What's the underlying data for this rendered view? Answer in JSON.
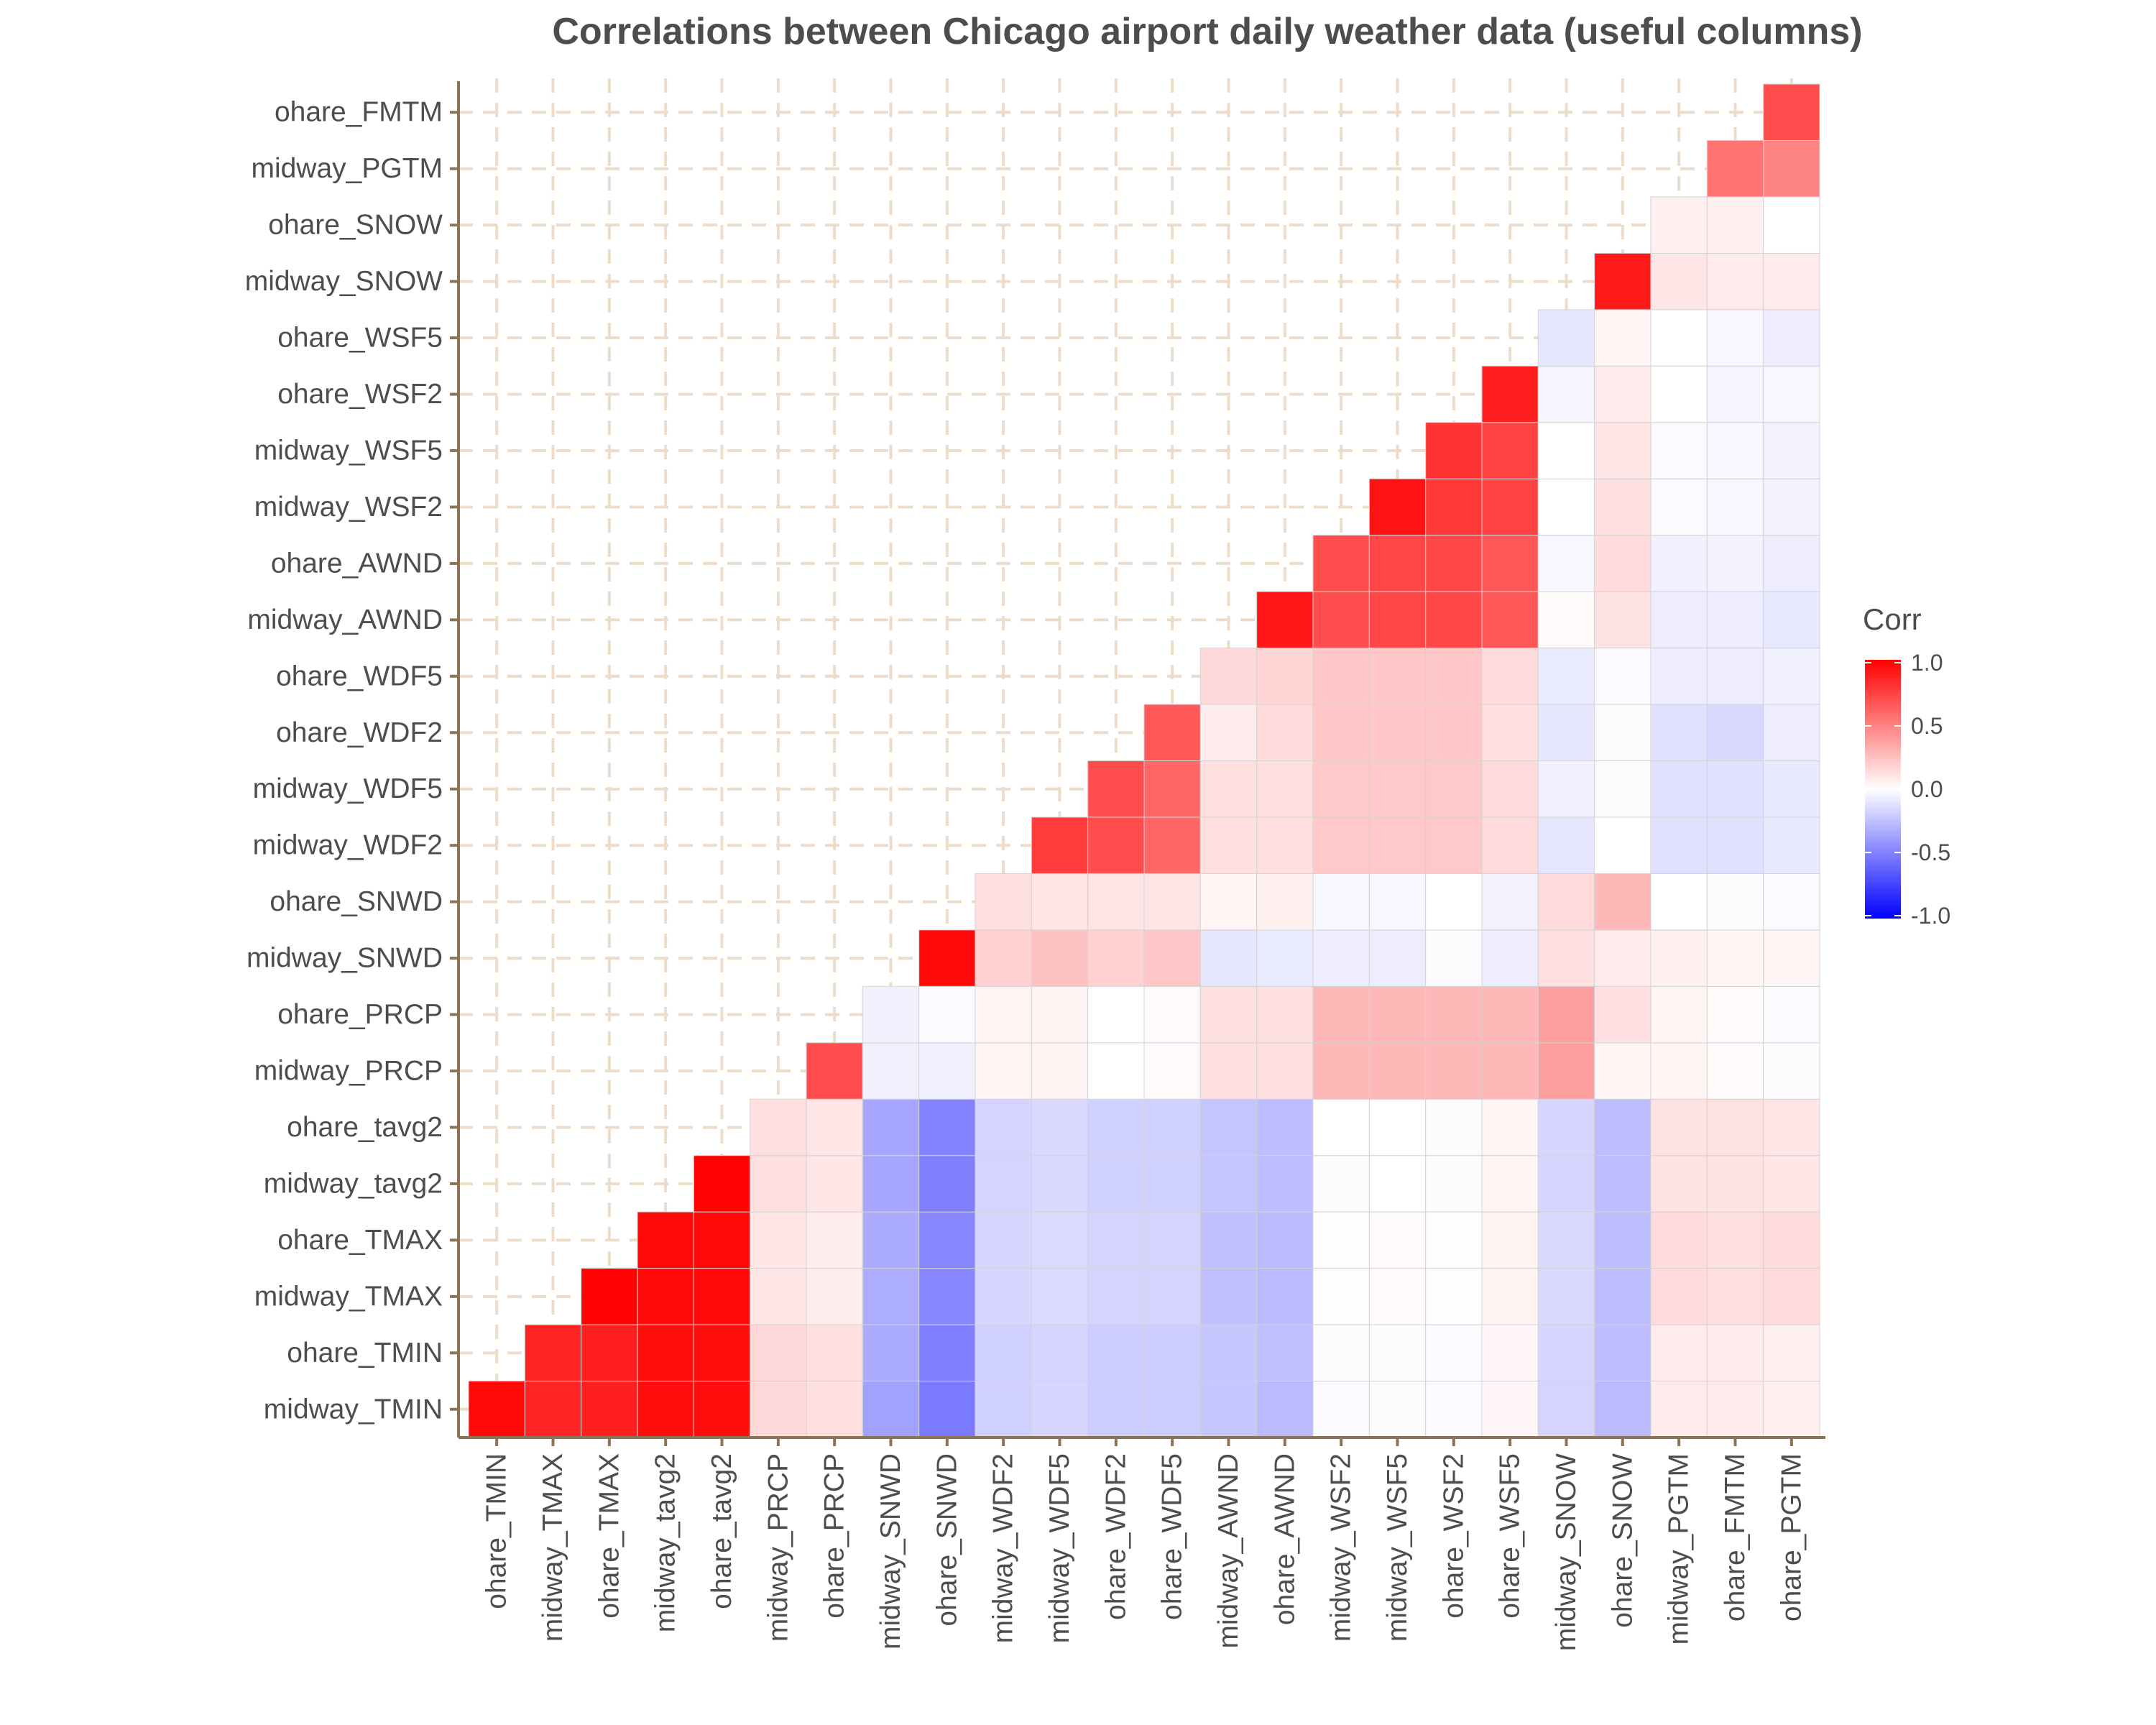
{
  "chart_data": {
    "type": "heatmap",
    "title": "Correlations between Chicago airport daily weather data (useful columns)",
    "x_labels": [
      "ohare_TMIN",
      "midway_TMAX",
      "ohare_TMAX",
      "midway_tavg2",
      "ohare_tavg2",
      "midway_PRCP",
      "ohare_PRCP",
      "midway_SNWD",
      "ohare_SNWD",
      "midway_WDF2",
      "midway_WDF5",
      "ohare_WDF2",
      "ohare_WDF5",
      "midway_AWND",
      "ohare_AWND",
      "midway_WSF2",
      "midway_WSF5",
      "ohare_WSF2",
      "ohare_WSF5",
      "midway_SNOW",
      "ohare_SNOW",
      "midway_PGTM",
      "ohare_FMTM",
      "ohare_PGTM"
    ],
    "y_labels": [
      "midway_TMIN",
      "ohare_TMIN",
      "midway_TMAX",
      "ohare_TMAX",
      "midway_tavg2",
      "ohare_tavg2",
      "midway_PRCP",
      "ohare_PRCP",
      "midway_SNWD",
      "ohare_SNWD",
      "midway_WDF2",
      "midway_WDF5",
      "ohare_WDF2",
      "ohare_WDF5",
      "midway_AWND",
      "ohare_AWND",
      "midway_WSF2",
      "midway_WSF5",
      "ohare_WSF2",
      "ohare_WSF5",
      "midway_SNOW",
      "ohare_SNOW",
      "midway_PGTM",
      "ohare_FMTM"
    ],
    "matrix": [
      [
        0.97,
        0.86,
        0.88,
        0.95,
        0.95,
        0.15,
        0.12,
        -0.37,
        -0.52,
        -0.18,
        -0.16,
        -0.2,
        -0.2,
        -0.22,
        -0.27,
        -0.02,
        -0.01,
        -0.02,
        0.03,
        -0.17,
        -0.27,
        0.08,
        0.08,
        0.06
      ],
      [
        null,
        0.86,
        0.88,
        0.95,
        0.95,
        0.15,
        0.12,
        -0.33,
        -0.5,
        -0.18,
        -0.16,
        -0.2,
        -0.2,
        -0.22,
        -0.25,
        -0.01,
        -0.01,
        -0.02,
        0.03,
        -0.16,
        -0.26,
        0.08,
        0.08,
        0.06
      ],
      [
        null,
        null,
        0.99,
        0.97,
        0.97,
        0.1,
        0.07,
        -0.32,
        -0.47,
        -0.16,
        -0.14,
        -0.17,
        -0.17,
        -0.25,
        -0.27,
        0.01,
        0.02,
        0.01,
        0.05,
        -0.15,
        -0.26,
        0.14,
        0.13,
        0.14
      ],
      [
        null,
        null,
        null,
        0.97,
        0.97,
        0.1,
        0.07,
        -0.33,
        -0.47,
        -0.16,
        -0.14,
        -0.17,
        -0.17,
        -0.25,
        -0.27,
        0.01,
        0.02,
        0.01,
        0.05,
        -0.15,
        -0.26,
        0.14,
        0.13,
        0.14
      ],
      [
        null,
        null,
        null,
        null,
        0.99,
        0.12,
        0.1,
        -0.35,
        -0.5,
        -0.17,
        -0.15,
        -0.18,
        -0.18,
        -0.23,
        -0.26,
        -0.01,
        0.0,
        -0.01,
        0.04,
        -0.16,
        -0.26,
        0.11,
        0.11,
        0.1
      ],
      [
        null,
        null,
        null,
        null,
        null,
        0.12,
        0.1,
        -0.35,
        -0.49,
        -0.17,
        -0.15,
        -0.18,
        -0.18,
        -0.23,
        -0.26,
        0.0,
        0.0,
        -0.01,
        0.04,
        -0.16,
        -0.26,
        0.11,
        0.11,
        0.1
      ],
      [
        null,
        null,
        null,
        null,
        null,
        null,
        0.7,
        -0.06,
        -0.06,
        0.04,
        0.05,
        0.0,
        0.02,
        0.12,
        0.12,
        0.28,
        0.28,
        0.28,
        0.28,
        0.38,
        0.04,
        0.04,
        0.02,
        -0.01
      ],
      [
        null,
        null,
        null,
        null,
        null,
        null,
        null,
        -0.06,
        -0.02,
        0.04,
        0.05,
        0.0,
        0.02,
        0.12,
        0.12,
        0.28,
        0.28,
        0.28,
        0.28,
        0.38,
        0.12,
        0.04,
        0.02,
        -0.02
      ],
      [
        null,
        null,
        null,
        null,
        null,
        null,
        null,
        null,
        0.97,
        0.18,
        0.24,
        0.18,
        0.22,
        -0.1,
        -0.08,
        -0.07,
        -0.07,
        -0.01,
        -0.07,
        0.12,
        0.08,
        0.06,
        0.04,
        0.04
      ],
      [
        null,
        null,
        null,
        null,
        null,
        null,
        null,
        null,
        null,
        0.12,
        0.1,
        0.1,
        0.1,
        0.04,
        0.06,
        -0.03,
        -0.03,
        0.0,
        -0.05,
        0.14,
        0.28,
        0.0,
        -0.01,
        -0.02
      ],
      [
        null,
        null,
        null,
        null,
        null,
        null,
        null,
        null,
        null,
        null,
        0.77,
        0.7,
        0.6,
        0.13,
        0.13,
        0.21,
        0.21,
        0.21,
        0.14,
        -0.1,
        0.0,
        -0.12,
        -0.12,
        -0.09
      ],
      [
        null,
        null,
        null,
        null,
        null,
        null,
        null,
        null,
        null,
        null,
        null,
        0.7,
        0.6,
        0.13,
        0.13,
        0.21,
        0.21,
        0.21,
        0.14,
        -0.06,
        -0.01,
        -0.12,
        -0.12,
        -0.09
      ],
      [
        null,
        null,
        null,
        null,
        null,
        null,
        null,
        null,
        null,
        null,
        null,
        null,
        0.66,
        0.08,
        0.14,
        0.22,
        0.22,
        0.22,
        0.12,
        -0.1,
        -0.01,
        -0.12,
        -0.15,
        -0.07
      ],
      [
        null,
        null,
        null,
        null,
        null,
        null,
        null,
        null,
        null,
        null,
        null,
        null,
        null,
        0.15,
        0.16,
        0.22,
        0.22,
        0.22,
        0.14,
        -0.08,
        -0.02,
        -0.07,
        -0.07,
        -0.06
      ],
      [
        null,
        null,
        null,
        null,
        null,
        null,
        null,
        null,
        null,
        null,
        null,
        null,
        null,
        null,
        0.91,
        0.7,
        0.72,
        0.72,
        0.66,
        0.02,
        0.11,
        -0.07,
        -0.07,
        -0.09
      ],
      [
        null,
        null,
        null,
        null,
        null,
        null,
        null,
        null,
        null,
        null,
        null,
        null,
        null,
        null,
        null,
        0.7,
        0.72,
        0.72,
        0.66,
        -0.03,
        0.14,
        -0.06,
        -0.05,
        -0.07
      ],
      [
        null,
        null,
        null,
        null,
        null,
        null,
        null,
        null,
        null,
        null,
        null,
        null,
        null,
        null,
        null,
        null,
        0.93,
        0.78,
        0.74,
        0.0,
        0.12,
        -0.02,
        -0.03,
        -0.05
      ],
      [
        null,
        null,
        null,
        null,
        null,
        null,
        null,
        null,
        null,
        null,
        null,
        null,
        null,
        null,
        null,
        null,
        null,
        0.8,
        0.74,
        0.0,
        0.1,
        -0.02,
        -0.03,
        -0.05
      ],
      [
        null,
        null,
        null,
        null,
        null,
        null,
        null,
        null,
        null,
        null,
        null,
        null,
        null,
        null,
        null,
        null,
        null,
        null,
        0.88,
        -0.04,
        0.08,
        0.0,
        -0.04,
        -0.03
      ],
      [
        null,
        null,
        null,
        null,
        null,
        null,
        null,
        null,
        null,
        null,
        null,
        null,
        null,
        null,
        null,
        null,
        null,
        null,
        null,
        -0.1,
        0.04,
        0.0,
        -0.03,
        -0.07
      ],
      [
        null,
        null,
        null,
        null,
        null,
        null,
        null,
        null,
        null,
        null,
        null,
        null,
        null,
        null,
        null,
        null,
        null,
        null,
        null,
        null,
        0.9,
        0.1,
        0.08,
        0.08
      ],
      [
        null,
        null,
        null,
        null,
        null,
        null,
        null,
        null,
        null,
        null,
        null,
        null,
        null,
        null,
        null,
        null,
        null,
        null,
        null,
        null,
        null,
        0.06,
        0.06,
        0.0
      ],
      [
        null,
        null,
        null,
        null,
        null,
        null,
        null,
        null,
        null,
        null,
        null,
        null,
        null,
        null,
        null,
        null,
        null,
        null,
        null,
        null,
        null,
        null,
        0.55,
        0.48
      ],
      [
        null,
        null,
        null,
        null,
        null,
        null,
        null,
        null,
        null,
        null,
        null,
        null,
        null,
        null,
        null,
        null,
        null,
        null,
        null,
        null,
        null,
        null,
        null,
        0.7
      ]
    ],
    "legend": {
      "title": "Corr",
      "ticks": [
        "1.0",
        "0.5",
        "0.0",
        "-0.5",
        "-1.0"
      ],
      "range": [
        -1,
        1
      ],
      "low_color": "#0000ff",
      "mid_color": "#ffffff",
      "high_color": "#ff0000"
    },
    "grid": true,
    "legend_position": "right"
  },
  "colors": {
    "text": "#4d4d4d",
    "axis": "#8b7355",
    "gridline": "#ecdcc9",
    "tile_border": "#d3d3d3"
  }
}
